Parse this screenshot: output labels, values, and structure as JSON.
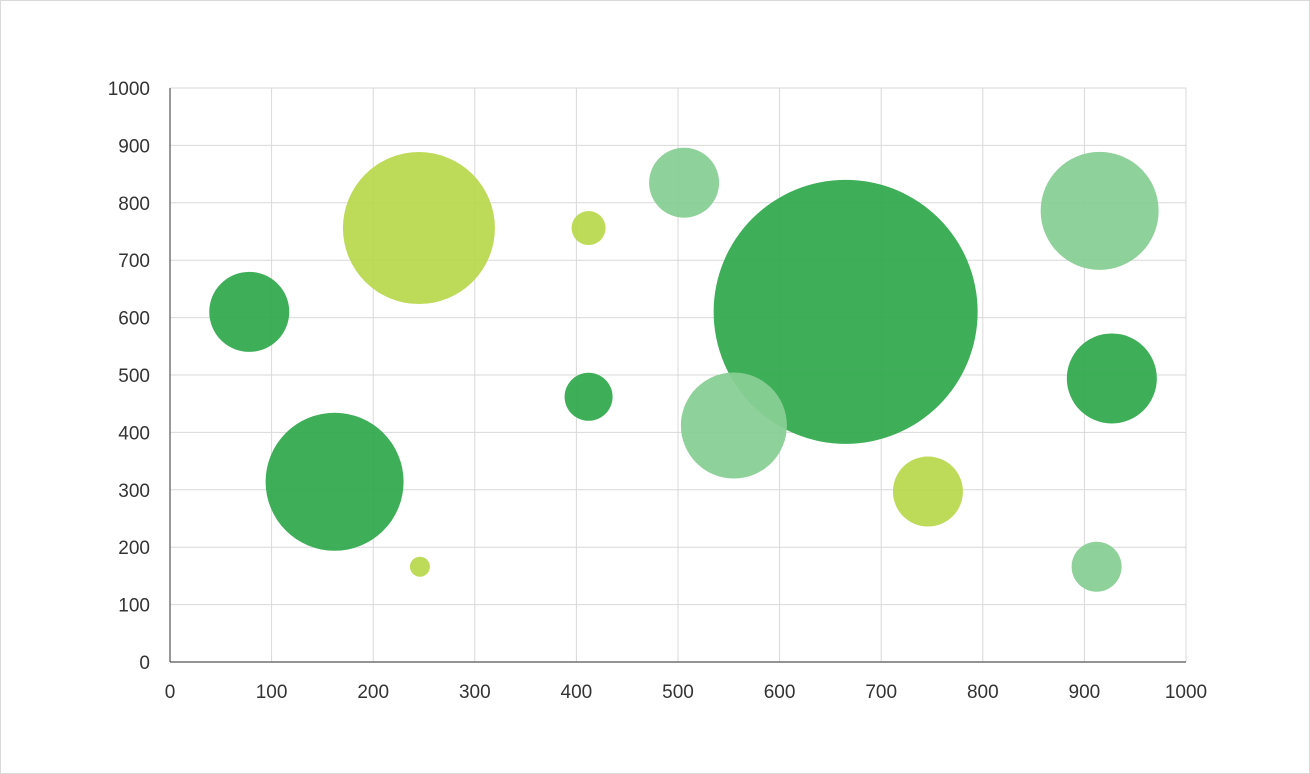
{
  "chart_data": {
    "type": "scatter",
    "variant": "bubble",
    "title": "",
    "xlabel": "",
    "ylabel": "",
    "xlim": [
      0,
      1000
    ],
    "ylim": [
      0,
      1000
    ],
    "xticks": [
      "0",
      "100",
      "200",
      "300",
      "400",
      "500",
      "600",
      "700",
      "800",
      "900",
      "1000"
    ],
    "yticks": [
      "0",
      "100",
      "200",
      "300",
      "400",
      "500",
      "600",
      "700",
      "800",
      "900",
      "1000"
    ],
    "grid": true,
    "legend": "none",
    "colors": {
      "grid": "#d9d9d9",
      "axis": "#555555",
      "tick_text": "#333333"
    },
    "series": [
      {
        "color": "#2ea84a",
        "opacity": 0.92,
        "points": [
          {
            "x": 78,
            "y": 610,
            "r": 40
          },
          {
            "x": 162,
            "y": 314,
            "r": 69
          },
          {
            "x": 412,
            "y": 462,
            "r": 24
          },
          {
            "x": 665,
            "y": 610,
            "r": 132
          },
          {
            "x": 927,
            "y": 494,
            "r": 45
          }
        ]
      },
      {
        "color": "#b7d74b",
        "opacity": 0.92,
        "points": [
          {
            "x": 245,
            "y": 756,
            "r": 76
          },
          {
            "x": 246,
            "y": 166,
            "r": 10
          },
          {
            "x": 412,
            "y": 756,
            "r": 17
          },
          {
            "x": 746,
            "y": 297,
            "r": 35
          }
        ]
      },
      {
        "color": "#88cf95",
        "opacity": 0.95,
        "points": [
          {
            "x": 506,
            "y": 835,
            "r": 35
          },
          {
            "x": 555,
            "y": 412,
            "r": 53
          },
          {
            "x": 915,
            "y": 786,
            "r": 59
          },
          {
            "x": 912,
            "y": 166,
            "r": 25
          }
        ]
      }
    ]
  }
}
